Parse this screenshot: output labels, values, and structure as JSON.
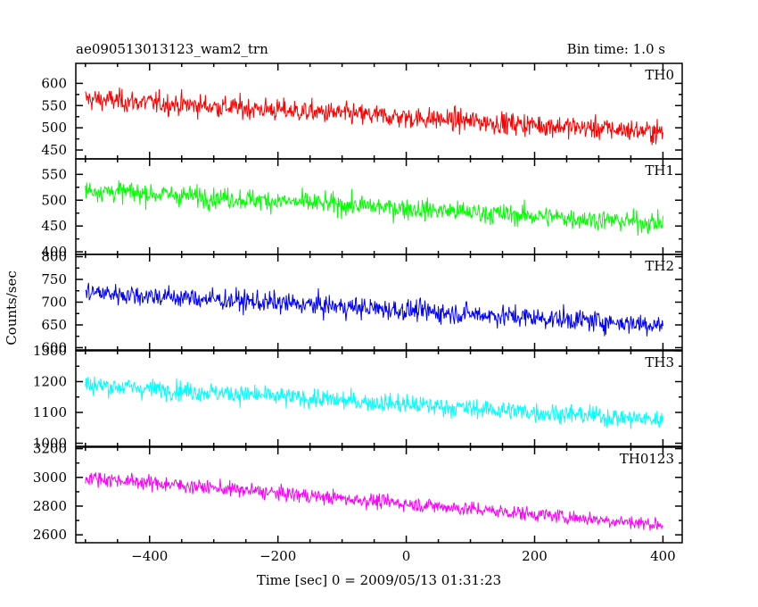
{
  "chart_data": {
    "type": "line",
    "title": "ae090513013123_wam2_trn",
    "bin_time_label": "Bin time: 1.0 s",
    "xlabel": "Time [sec] 0 = 2009/05/13 01:31:23",
    "ylabel": "Counts/sec",
    "xlim": [
      -515,
      430
    ],
    "x_ticks": [
      -400,
      -200,
      0,
      200,
      400
    ],
    "x_tick_labels": [
      "−400",
      "−200",
      "0",
      "200",
      "400"
    ],
    "x_data_range": [
      -500,
      400
    ],
    "grid": false,
    "panels": [
      {
        "name": "TH0",
        "color": "#ff0000",
        "ylim": [
          430,
          645
        ],
        "y_ticks": [
          450,
          500,
          550,
          600
        ],
        "y_tick_labels": [
          "450",
          "500",
          "550",
          "600"
        ],
        "trend_start": 565,
        "trend_end": 490,
        "noise": 32
      },
      {
        "name": "TH1",
        "color": "#00ff00",
        "ylim": [
          395,
          580
        ],
        "y_ticks": [
          400,
          450,
          500,
          550
        ],
        "y_tick_labels": [
          "400",
          "450",
          "500",
          "550"
        ],
        "trend_start": 520,
        "trend_end": 455,
        "noise": 26
      },
      {
        "name": "TH2",
        "color": "#0000ff",
        "ylim": [
          595,
          805
        ],
        "y_ticks": [
          600,
          650,
          700,
          750,
          800
        ],
        "y_tick_labels": [
          "600",
          "650",
          "700",
          "750",
          "800"
        ],
        "trend_start": 722,
        "trend_end": 650,
        "noise": 30
      },
      {
        "name": "TH3",
        "color": "#00ffff",
        "ylim": [
          990,
          1300
        ],
        "y_ticks": [
          1000,
          1100,
          1200,
          1300
        ],
        "y_tick_labels": [
          "1000",
          "1100",
          "1200",
          "1300"
        ],
        "trend_start": 1190,
        "trend_end": 1075,
        "noise": 40
      },
      {
        "name": "TH0123",
        "color": "#ff00ff",
        "ylim": [
          2545,
          3210
        ],
        "y_ticks": [
          2600,
          2800,
          3000,
          3200
        ],
        "y_tick_labels": [
          "2600",
          "2800",
          "3000",
          "3200"
        ],
        "trend_start": 3000,
        "trend_end": 2670,
        "noise": 65
      }
    ]
  }
}
